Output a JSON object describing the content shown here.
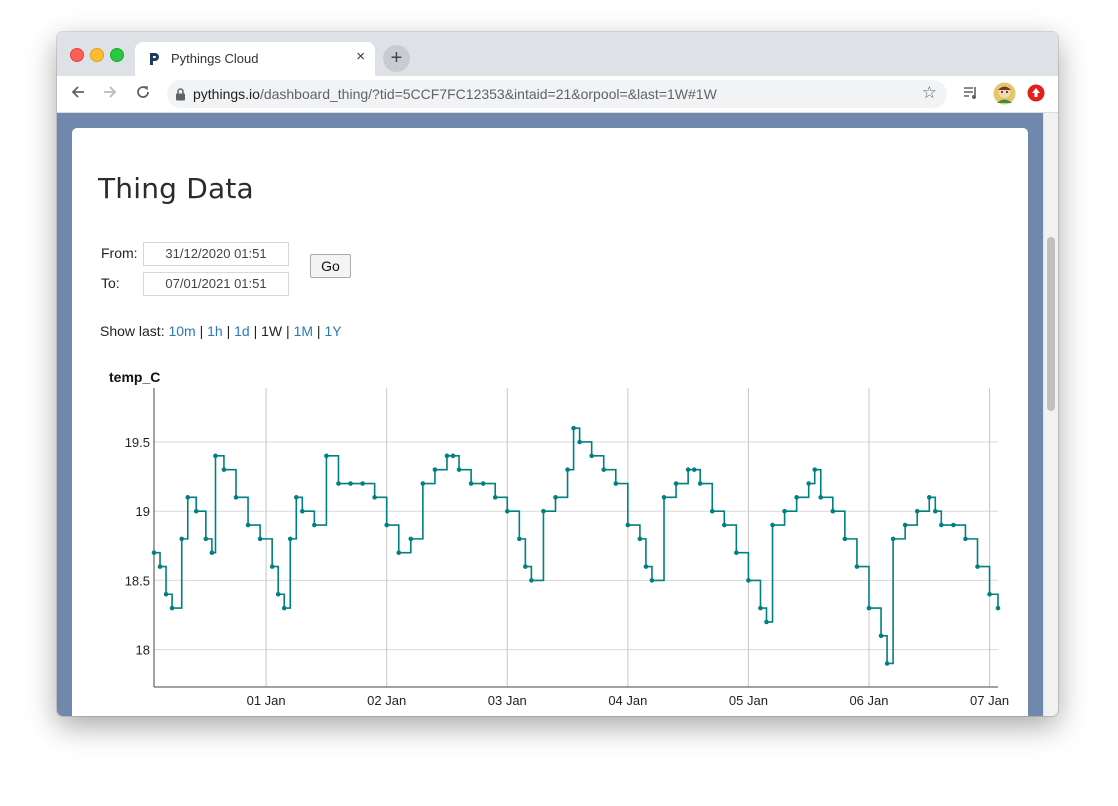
{
  "browser": {
    "tab_title": "Pythings Cloud",
    "url_host": "pythings.io",
    "url_path": "/dashboard_thing/?tid=5CCF7FC12353&intaid=21&orpool=&last=1W#1W",
    "icons": [
      "back-arrow-icon",
      "forward-arrow-icon",
      "reload-icon",
      "lock-icon",
      "star-icon",
      "playlist-icon",
      "avatar-icon",
      "extension-icon"
    ],
    "new_tab_label": "+",
    "close_label": "×"
  },
  "page": {
    "title": "Thing Data",
    "from_label": "From:",
    "to_label": "To:",
    "from_value": "31/12/2020 01:51",
    "to_value": "07/01/2021 01:51",
    "go_label": "Go",
    "show_last_label": "Show last:",
    "ranges": [
      "10m",
      "1h",
      "1d",
      "1W",
      "1M",
      "1Y"
    ],
    "active_range": "1W"
  },
  "colors": {
    "accent": "#008080",
    "link": "#2a7ab8",
    "page_bg": "#6f88ab"
  },
  "chart_data": {
    "type": "line",
    "title": "temp_C",
    "xlabel": "",
    "ylabel": "",
    "x_tick_labels": [
      "01 Jan",
      "02 Jan",
      "03 Jan",
      "04 Jan",
      "05 Jan",
      "06 Jan",
      "07 Jan"
    ],
    "y_tick_labels": [
      "18",
      "18.5",
      "19",
      "19.5"
    ],
    "x_range_days": [
      0.07,
      7.07
    ],
    "ylim": [
      17.73,
      19.89
    ],
    "grid": true,
    "series": [
      {
        "x_days": [
          0.07,
          0.12,
          0.17,
          0.22,
          0.3,
          0.35,
          0.42,
          0.5,
          0.55,
          0.58,
          0.65,
          0.75,
          0.85,
          0.95,
          1.05,
          1.1,
          1.15,
          1.2,
          1.25,
          1.3,
          1.4,
          1.5,
          1.6,
          1.7,
          1.8,
          1.9,
          2.0,
          2.1,
          2.2,
          2.3,
          2.4,
          2.5,
          2.55,
          2.6,
          2.7,
          2.8,
          2.9,
          3.0,
          3.1,
          3.15,
          3.2,
          3.3,
          3.4,
          3.5,
          3.55,
          3.6,
          3.7,
          3.8,
          3.9,
          4.0,
          4.1,
          4.15,
          4.2,
          4.3,
          4.4,
          4.5,
          4.55,
          4.6,
          4.7,
          4.8,
          4.9,
          5.0,
          5.1,
          5.15,
          5.2,
          5.3,
          5.4,
          5.5,
          5.55,
          5.6,
          5.7,
          5.8,
          5.9,
          6.0,
          6.1,
          6.15,
          6.2,
          6.3,
          6.4,
          6.5,
          6.55,
          6.6,
          6.7,
          6.8,
          6.9,
          7.0,
          7.07
        ],
        "values": [
          18.7,
          18.6,
          18.4,
          18.3,
          18.8,
          19.1,
          19.0,
          18.8,
          18.7,
          19.4,
          19.3,
          19.1,
          18.9,
          18.8,
          18.6,
          18.4,
          18.3,
          18.8,
          19.1,
          19.0,
          18.9,
          19.4,
          19.2,
          19.2,
          19.2,
          19.1,
          18.9,
          18.7,
          18.8,
          19.2,
          19.3,
          19.4,
          19.4,
          19.3,
          19.2,
          19.2,
          19.1,
          19.0,
          18.8,
          18.6,
          18.5,
          19.0,
          19.1,
          19.3,
          19.6,
          19.5,
          19.4,
          19.3,
          19.2,
          18.9,
          18.8,
          18.6,
          18.5,
          19.1,
          19.2,
          19.3,
          19.3,
          19.2,
          19.0,
          18.9,
          18.7,
          18.5,
          18.3,
          18.2,
          18.9,
          19.0,
          19.1,
          19.2,
          19.3,
          19.1,
          19.0,
          18.8,
          18.6,
          18.3,
          18.1,
          17.9,
          18.8,
          18.9,
          19.0,
          19.1,
          19.0,
          18.9,
          18.9,
          18.8,
          18.6,
          18.4,
          18.3
        ]
      }
    ]
  }
}
